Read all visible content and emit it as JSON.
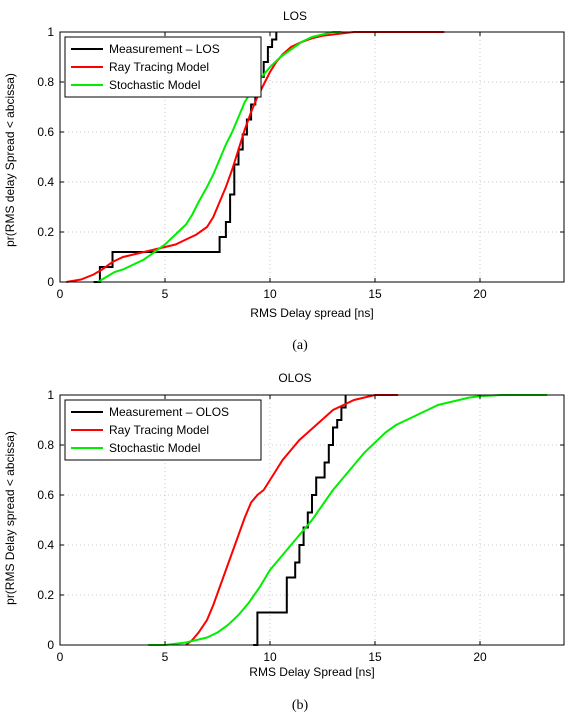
{
  "chart_data": [
    {
      "type": "line",
      "step": true,
      "title": "LOS",
      "xlabel": "RMS Delay spread [ns]",
      "ylabel": "pr(RMS delay Spread < abcissa)",
      "caption": "(a)",
      "xlim": [
        0,
        24
      ],
      "ylim": [
        0,
        1
      ],
      "xticks": [
        0,
        5,
        10,
        15,
        20
      ],
      "yticks": [
        0,
        0.2,
        0.4,
        0.6,
        0.8,
        1
      ],
      "grid": true,
      "legend_position": "top-left",
      "series": [
        {
          "name": "Measurement – LOS",
          "color": "#000000",
          "x": [
            1.6,
            1.9,
            1.9,
            2.2,
            2.2,
            2.5,
            2.5,
            7.6,
            7.6,
            7.9,
            7.9,
            8.1,
            8.1,
            8.3,
            8.3,
            8.5,
            8.5,
            8.7,
            8.7,
            8.9,
            8.9,
            9.1,
            9.1,
            9.3,
            9.3,
            9.5,
            9.5,
            9.7,
            9.7,
            9.9,
            9.9,
            10.1,
            10.1,
            10.3,
            10.3
          ],
          "y": [
            0,
            0,
            0.06,
            0.06,
            0.06,
            0.06,
            0.12,
            0.12,
            0.18,
            0.18,
            0.24,
            0.24,
            0.35,
            0.35,
            0.47,
            0.47,
            0.53,
            0.53,
            0.59,
            0.59,
            0.65,
            0.65,
            0.71,
            0.71,
            0.76,
            0.76,
            0.82,
            0.82,
            0.88,
            0.88,
            0.94,
            0.94,
            0.97,
            0.97,
            1.0
          ]
        },
        {
          "name": "Ray Tracing Model",
          "color": "#ff0000",
          "x": [
            0.3,
            1.0,
            1.6,
            2.0,
            2.5,
            3.0,
            3.5,
            4.0,
            4.5,
            5.0,
            5.5,
            6.0,
            6.5,
            7.0,
            7.3,
            7.6,
            7.9,
            8.2,
            8.5,
            8.8,
            9.1,
            9.4,
            9.7,
            10.0,
            10.3,
            10.6,
            11.0,
            11.5,
            12.0,
            12.5,
            13.0,
            13.5,
            14.0,
            15.0,
            16.0,
            17.0,
            18.3
          ],
          "y": [
            0,
            0.01,
            0.03,
            0.05,
            0.08,
            0.1,
            0.11,
            0.12,
            0.13,
            0.14,
            0.15,
            0.17,
            0.19,
            0.22,
            0.26,
            0.32,
            0.38,
            0.45,
            0.53,
            0.61,
            0.68,
            0.74,
            0.79,
            0.84,
            0.88,
            0.91,
            0.94,
            0.96,
            0.975,
            0.985,
            0.99,
            0.995,
            1.0,
            1.0,
            1.0,
            1.0,
            1.0
          ]
        },
        {
          "name": "Stochastic Model",
          "color": "#00ee00",
          "x": [
            1.8,
            2.2,
            2.6,
            3.0,
            3.5,
            4.0,
            4.5,
            5.0,
            5.5,
            6.0,
            6.3,
            6.6,
            7.0,
            7.3,
            7.6,
            7.9,
            8.2,
            8.5,
            8.8,
            9.1,
            9.4,
            9.7,
            10.0,
            10.5,
            11.0,
            11.5,
            12.0,
            12.5,
            13.0,
            13.4
          ],
          "y": [
            0,
            0.02,
            0.04,
            0.05,
            0.07,
            0.09,
            0.12,
            0.15,
            0.19,
            0.23,
            0.27,
            0.32,
            0.38,
            0.43,
            0.49,
            0.55,
            0.6,
            0.66,
            0.72,
            0.76,
            0.8,
            0.83,
            0.86,
            0.9,
            0.93,
            0.96,
            0.98,
            0.99,
            1.0,
            1.0
          ]
        }
      ]
    },
    {
      "type": "line",
      "step": true,
      "title": "OLOS",
      "xlabel": "RMS Delay Spread [ns]",
      "ylabel": "pr(RMS Delay spread < abcissa)",
      "caption": "(b)",
      "xlim": [
        0,
        24
      ],
      "ylim": [
        0,
        1
      ],
      "xticks": [
        0,
        5,
        10,
        15,
        20
      ],
      "yticks": [
        0,
        0.2,
        0.4,
        0.6,
        0.8,
        1
      ],
      "grid": true,
      "legend_position": "top-left",
      "series": [
        {
          "name": "Measurement – OLOS",
          "color": "#000000",
          "x": [
            9.2,
            9.4,
            9.4,
            10.8,
            10.8,
            11.2,
            11.2,
            11.4,
            11.4,
            11.6,
            11.6,
            11.8,
            11.8,
            12.0,
            12.0,
            12.2,
            12.2,
            12.6,
            12.6,
            12.8,
            12.8,
            13.0,
            13.0,
            13.2,
            13.2,
            13.4,
            13.4,
            13.6,
            13.6
          ],
          "y": [
            0,
            0,
            0.13,
            0.13,
            0.27,
            0.27,
            0.33,
            0.33,
            0.4,
            0.4,
            0.47,
            0.47,
            0.53,
            0.53,
            0.6,
            0.6,
            0.67,
            0.67,
            0.73,
            0.73,
            0.8,
            0.8,
            0.87,
            0.87,
            0.9,
            0.9,
            0.95,
            0.95,
            1.0
          ]
        },
        {
          "name": "Ray Tracing Model",
          "color": "#ff0000",
          "x": [
            6.0,
            6.3,
            6.6,
            7.0,
            7.3,
            7.6,
            7.9,
            8.2,
            8.5,
            8.8,
            9.1,
            9.4,
            9.7,
            10.0,
            10.3,
            10.6,
            11.0,
            11.4,
            11.8,
            12.2,
            12.6,
            13.0,
            13.5,
            14.0,
            14.5,
            15.0,
            15.5,
            16.1
          ],
          "y": [
            0,
            0.02,
            0.05,
            0.1,
            0.16,
            0.23,
            0.3,
            0.37,
            0.44,
            0.51,
            0.57,
            0.6,
            0.62,
            0.66,
            0.7,
            0.74,
            0.78,
            0.82,
            0.85,
            0.88,
            0.91,
            0.94,
            0.96,
            0.98,
            0.99,
            1.0,
            1.0,
            1.0
          ]
        },
        {
          "name": "Stochastic Model",
          "color": "#00ee00",
          "x": [
            4.2,
            5.0,
            6.0,
            6.5,
            7.0,
            7.5,
            8.0,
            8.5,
            9.0,
            9.5,
            10.0,
            10.5,
            11.0,
            11.5,
            12.0,
            12.5,
            13.0,
            13.5,
            14.0,
            14.5,
            15.0,
            15.5,
            16.0,
            16.5,
            17.0,
            17.5,
            18.0,
            18.5,
            19.0,
            19.5,
            20.0,
            21.0,
            22.0,
            23.2
          ],
          "y": [
            0,
            0,
            0.01,
            0.02,
            0.03,
            0.05,
            0.08,
            0.12,
            0.17,
            0.23,
            0.3,
            0.35,
            0.4,
            0.45,
            0.5,
            0.56,
            0.62,
            0.67,
            0.72,
            0.77,
            0.81,
            0.85,
            0.88,
            0.9,
            0.92,
            0.94,
            0.96,
            0.97,
            0.98,
            0.99,
            0.995,
            1.0,
            1.0,
            1.0
          ]
        }
      ]
    }
  ]
}
